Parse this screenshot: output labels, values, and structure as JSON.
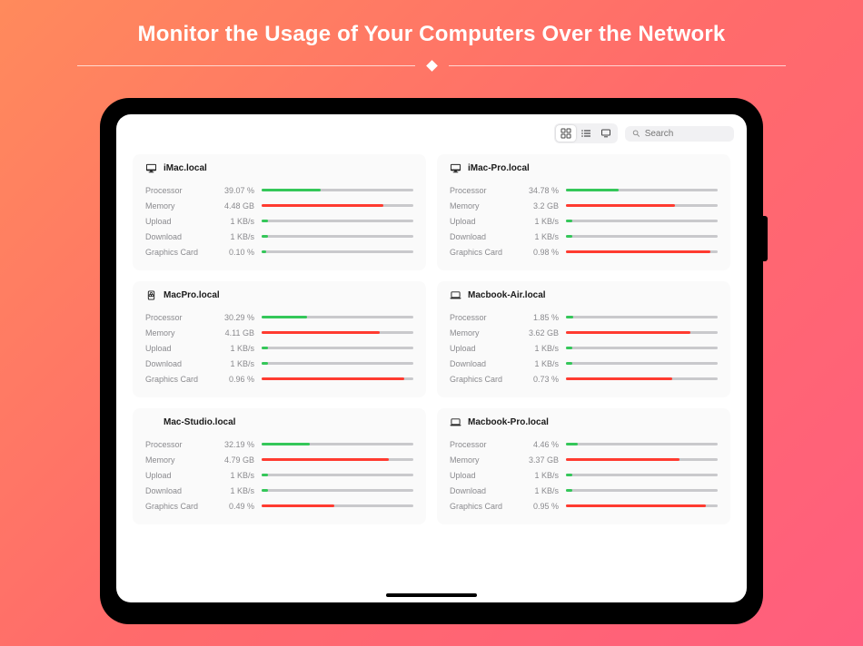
{
  "hero": {
    "title": "Monitor the Usage of Your Computers Over the Network"
  },
  "colors": {
    "green": "#34c759",
    "red": "#ff3b30",
    "track": "#c9c9cc",
    "card_bg": "#fafafa",
    "text_muted": "#8a8a8e"
  },
  "toolbar": {
    "search_placeholder": "Search",
    "view_buttons": [
      "grid",
      "list",
      "detail"
    ],
    "active_view": "grid"
  },
  "metric_labels": {
    "processor": "Processor",
    "memory": "Memory",
    "upload": "Upload",
    "download": "Download",
    "graphics": "Graphics Card"
  },
  "devices": [
    {
      "id": "imac",
      "name": "iMac.local",
      "icon": "imac",
      "metrics": {
        "processor": {
          "value": "39.07 %",
          "fill_pct": 39,
          "color": "green"
        },
        "memory": {
          "value": "4.48 GB",
          "fill_pct": 80,
          "color": "red"
        },
        "upload": {
          "value": "1 KB/s",
          "fill_pct": 4,
          "color": "green"
        },
        "download": {
          "value": "1 KB/s",
          "fill_pct": 4,
          "color": "green"
        },
        "graphics": {
          "value": "0.10 %",
          "fill_pct": 3,
          "color": "green"
        }
      }
    },
    {
      "id": "imac-pro",
      "name": "iMac-Pro.local",
      "icon": "imac",
      "metrics": {
        "processor": {
          "value": "34.78 %",
          "fill_pct": 35,
          "color": "green"
        },
        "memory": {
          "value": "3.2 GB",
          "fill_pct": 72,
          "color": "red"
        },
        "upload": {
          "value": "1 KB/s",
          "fill_pct": 4,
          "color": "green"
        },
        "download": {
          "value": "1 KB/s",
          "fill_pct": 4,
          "color": "green"
        },
        "graphics": {
          "value": "0.98 %",
          "fill_pct": 95,
          "color": "red"
        }
      }
    },
    {
      "id": "macpro",
      "name": "MacPro.local",
      "icon": "macpro",
      "metrics": {
        "processor": {
          "value": "30.29 %",
          "fill_pct": 30,
          "color": "green"
        },
        "memory": {
          "value": "4.11 GB",
          "fill_pct": 78,
          "color": "red"
        },
        "upload": {
          "value": "1 KB/s",
          "fill_pct": 4,
          "color": "green"
        },
        "download": {
          "value": "1 KB/s",
          "fill_pct": 4,
          "color": "green"
        },
        "graphics": {
          "value": "0.96 %",
          "fill_pct": 94,
          "color": "red"
        }
      }
    },
    {
      "id": "macbook-air",
      "name": "Macbook-Air.local",
      "icon": "laptop",
      "metrics": {
        "processor": {
          "value": "1.85 %",
          "fill_pct": 5,
          "color": "green"
        },
        "memory": {
          "value": "3.62 GB",
          "fill_pct": 82,
          "color": "red"
        },
        "upload": {
          "value": "1 KB/s",
          "fill_pct": 4,
          "color": "green"
        },
        "download": {
          "value": "1 KB/s",
          "fill_pct": 4,
          "color": "green"
        },
        "graphics": {
          "value": "0.73 %",
          "fill_pct": 70,
          "color": "red"
        }
      }
    },
    {
      "id": "mac-studio",
      "name": "Mac-Studio.local",
      "icon": "none",
      "metrics": {
        "processor": {
          "value": "32.19 %",
          "fill_pct": 32,
          "color": "green"
        },
        "memory": {
          "value": "4.79 GB",
          "fill_pct": 84,
          "color": "red"
        },
        "upload": {
          "value": "1 KB/s",
          "fill_pct": 4,
          "color": "green"
        },
        "download": {
          "value": "1 KB/s",
          "fill_pct": 4,
          "color": "green"
        },
        "graphics": {
          "value": "0.49 %",
          "fill_pct": 48,
          "color": "red"
        }
      }
    },
    {
      "id": "macbook-pro",
      "name": "Macbook-Pro.local",
      "icon": "laptop",
      "metrics": {
        "processor": {
          "value": "4.46 %",
          "fill_pct": 8,
          "color": "green"
        },
        "memory": {
          "value": "3.37 GB",
          "fill_pct": 75,
          "color": "red"
        },
        "upload": {
          "value": "1 KB/s",
          "fill_pct": 4,
          "color": "green"
        },
        "download": {
          "value": "1 KB/s",
          "fill_pct": 4,
          "color": "green"
        },
        "graphics": {
          "value": "0.95 %",
          "fill_pct": 92,
          "color": "red"
        }
      }
    }
  ]
}
